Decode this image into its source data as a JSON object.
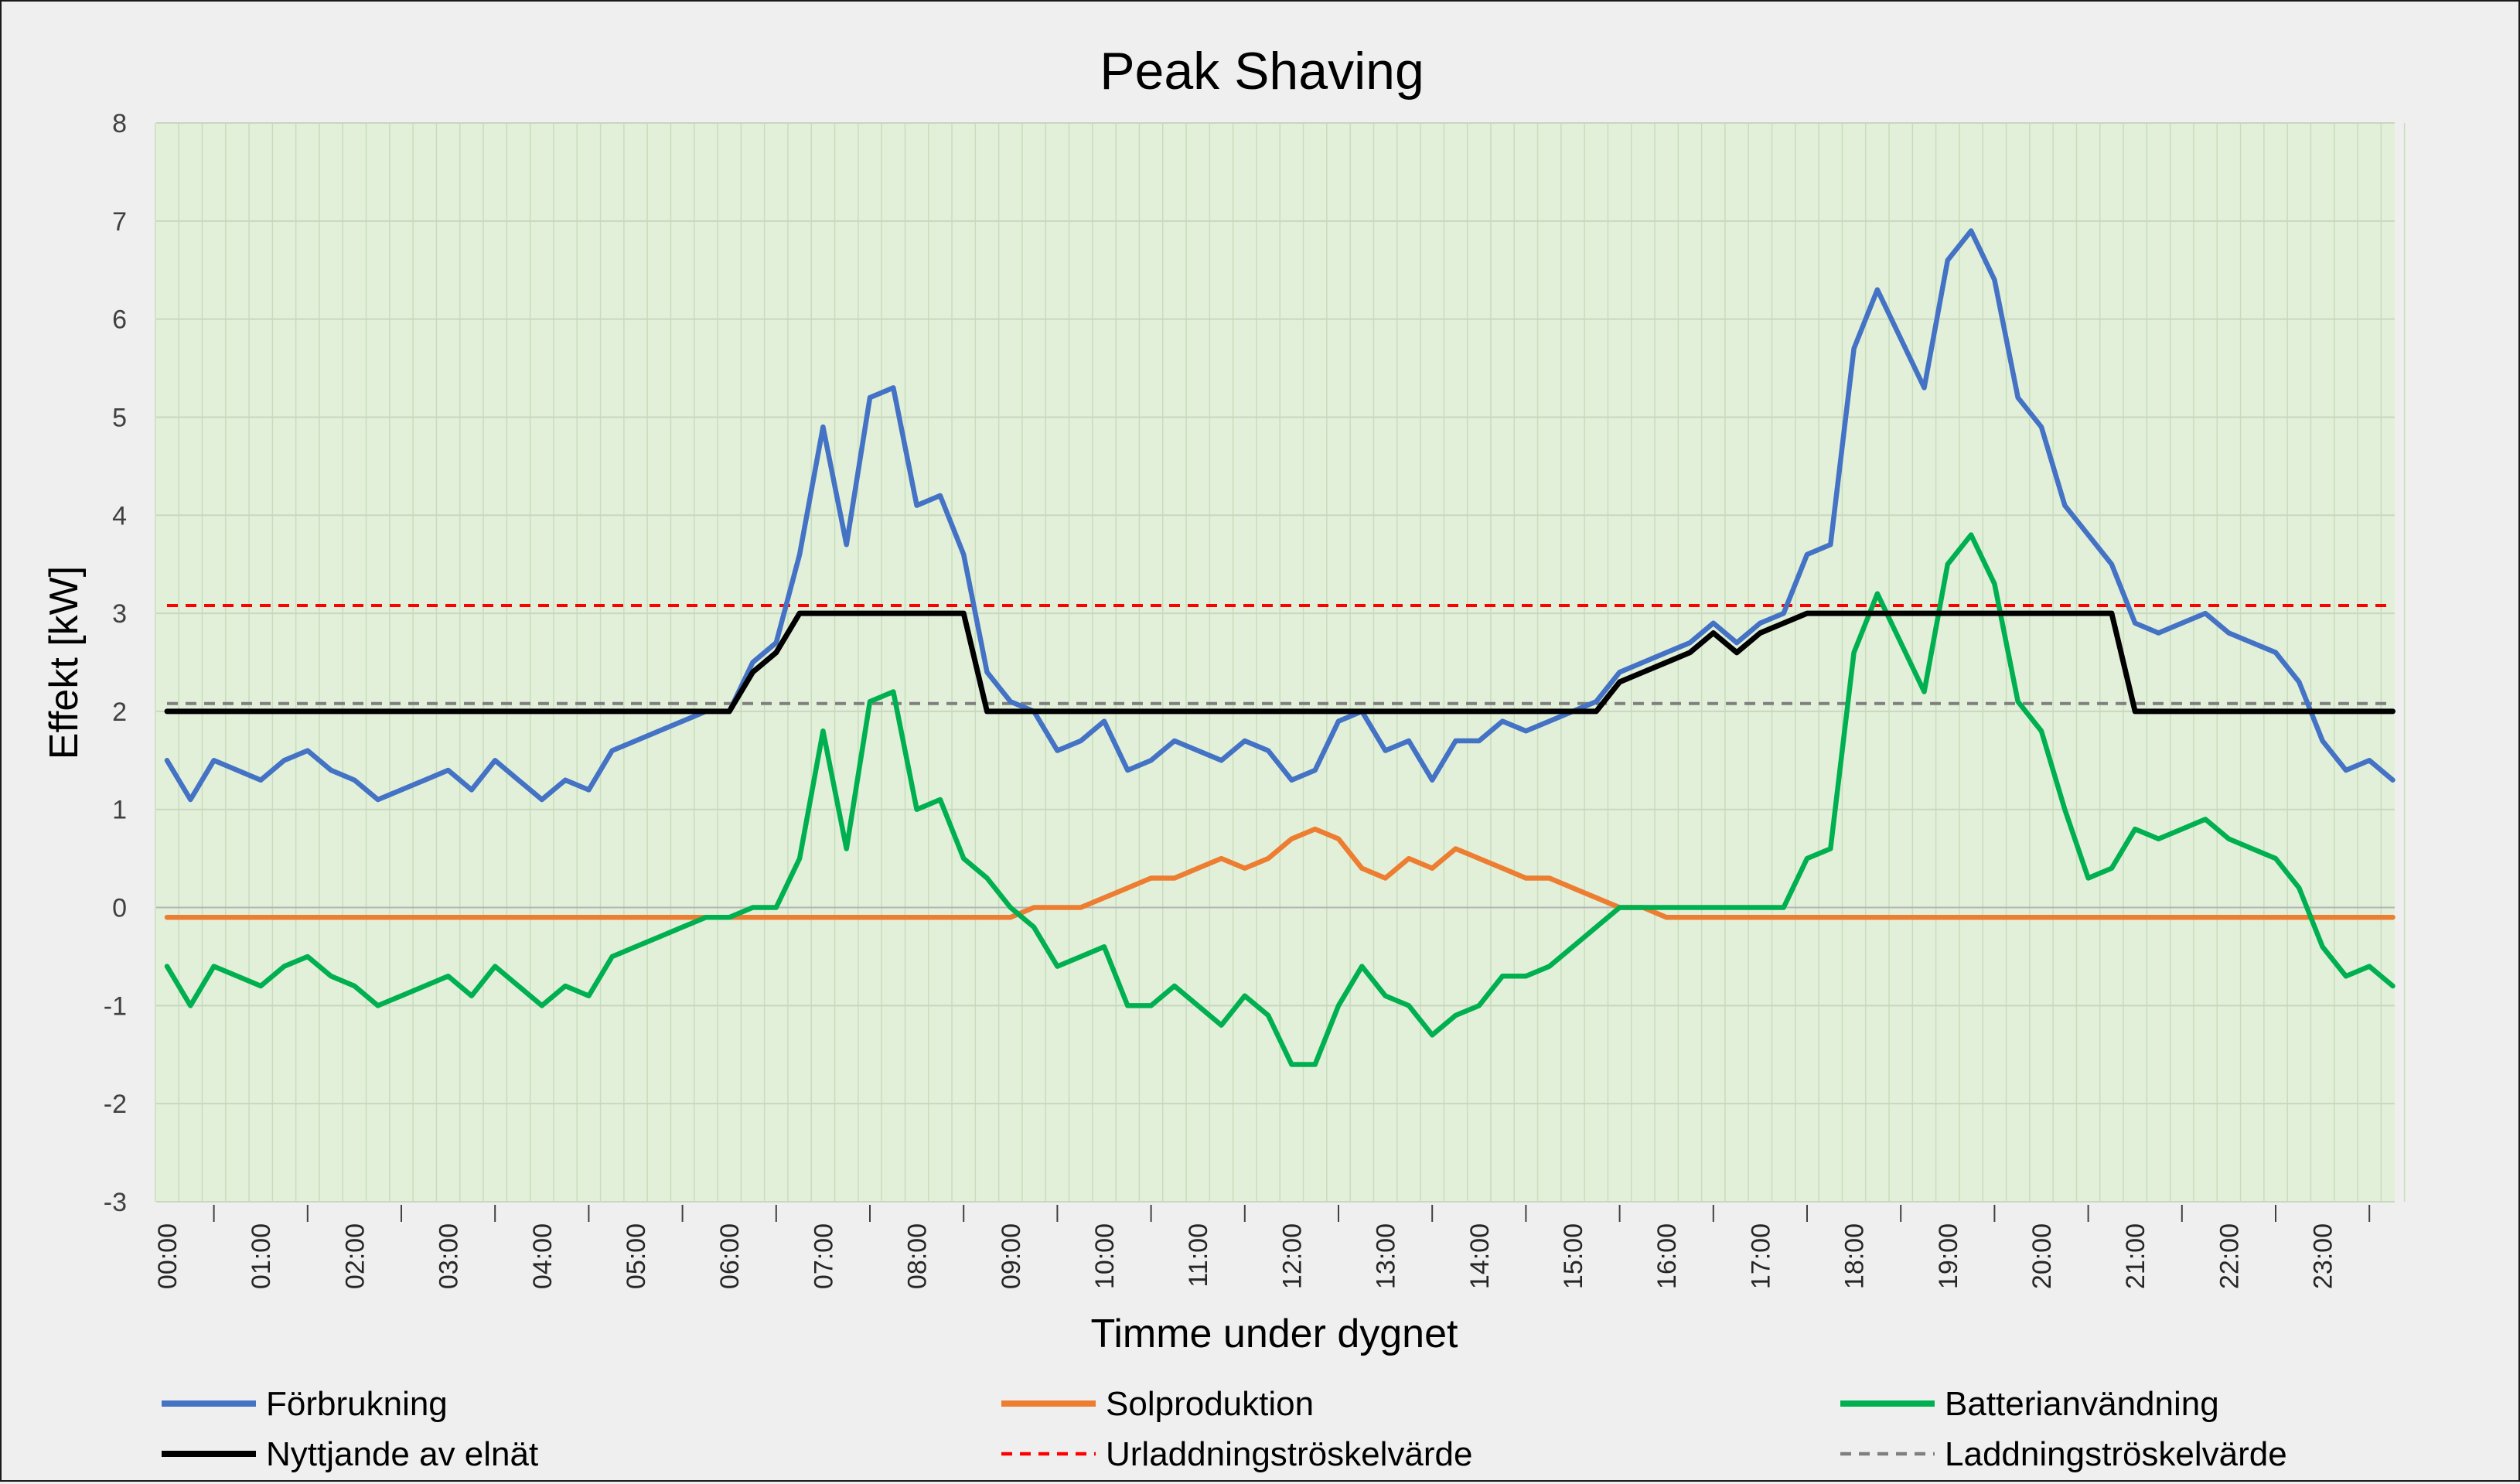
{
  "chart_data": {
    "type": "line",
    "title": "Peak Shaving",
    "xlabel": "Timme under dygnet",
    "ylabel": "Effekt [kW]",
    "ylim": [
      -3,
      8
    ],
    "yticks": [
      -3,
      -2,
      -1,
      0,
      1,
      2,
      3,
      4,
      5,
      6,
      7,
      8
    ],
    "x_tick_labels": [
      "00:00",
      "01:00",
      "02:00",
      "03:00",
      "04:00",
      "05:00",
      "06:00",
      "07:00",
      "08:00",
      "09:00",
      "10:00",
      "11:00",
      "12:00",
      "13:00",
      "14:00",
      "15:00",
      "16:00",
      "17:00",
      "18:00",
      "19:00",
      "20:00",
      "21:00",
      "22:00",
      "23:00"
    ],
    "x_step_minutes": 15,
    "grid": true,
    "legend": "bottom",
    "plot_background": "#e2f0d9",
    "series": [
      {
        "name": "Förbrukning",
        "color": "#4472c4",
        "dash": "solid",
        "values": [
          1.5,
          1.1,
          1.5,
          1.4,
          1.3,
          1.5,
          1.6,
          1.4,
          1.3,
          1.1,
          1.2,
          1.3,
          1.4,
          1.2,
          1.5,
          1.3,
          1.1,
          1.3,
          1.2,
          1.6,
          1.7,
          1.8,
          1.9,
          2.0,
          2.0,
          2.5,
          2.7,
          3.6,
          4.9,
          3.7,
          5.2,
          5.3,
          4.1,
          4.2,
          3.6,
          2.4,
          2.1,
          2.0,
          1.6,
          1.7,
          1.9,
          1.4,
          1.5,
          1.7,
          1.6,
          1.5,
          1.7,
          1.6,
          1.3,
          1.4,
          1.9,
          2.0,
          1.6,
          1.7,
          1.3,
          1.7,
          1.7,
          1.9,
          1.8,
          1.9,
          2.0,
          2.1,
          2.4,
          2.5,
          2.6,
          2.7,
          2.9,
          2.7,
          2.9,
          3.0,
          3.6,
          3.7,
          5.7,
          6.3,
          5.8,
          5.3,
          6.6,
          6.9,
          6.4,
          5.2,
          4.9,
          4.1,
          3.8,
          3.5,
          2.9,
          2.8,
          2.9,
          3.0,
          2.8,
          2.7,
          2.6,
          2.3,
          1.7,
          1.4,
          1.5,
          1.3
        ]
      },
      {
        "name": "Solproduktion",
        "color": "#ed7d31",
        "dash": "solid",
        "values": [
          -0.1,
          -0.1,
          -0.1,
          -0.1,
          -0.1,
          -0.1,
          -0.1,
          -0.1,
          -0.1,
          -0.1,
          -0.1,
          -0.1,
          -0.1,
          -0.1,
          -0.1,
          -0.1,
          -0.1,
          -0.1,
          -0.1,
          -0.1,
          -0.1,
          -0.1,
          -0.1,
          -0.1,
          -0.1,
          -0.1,
          -0.1,
          -0.1,
          -0.1,
          -0.1,
          -0.1,
          -0.1,
          -0.1,
          -0.1,
          -0.1,
          -0.1,
          -0.1,
          0.0,
          0.0,
          0.0,
          0.1,
          0.2,
          0.3,
          0.3,
          0.4,
          0.5,
          0.4,
          0.5,
          0.7,
          0.8,
          0.7,
          0.4,
          0.3,
          0.5,
          0.4,
          0.6,
          0.5,
          0.4,
          0.3,
          0.3,
          0.2,
          0.1,
          0.0,
          0.0,
          -0.1,
          -0.1,
          -0.1,
          -0.1,
          -0.1,
          -0.1,
          -0.1,
          -0.1,
          -0.1,
          -0.1,
          -0.1,
          -0.1,
          -0.1,
          -0.1,
          -0.1,
          -0.1,
          -0.1,
          -0.1,
          -0.1,
          -0.1,
          -0.1,
          -0.1,
          -0.1,
          -0.1,
          -0.1,
          -0.1,
          -0.1,
          -0.1,
          -0.1,
          -0.1,
          -0.1,
          -0.1
        ]
      },
      {
        "name": "Batterianvändning",
        "color": "#00b050",
        "dash": "solid",
        "values": [
          -0.6,
          -1.0,
          -0.6,
          -0.7,
          -0.8,
          -0.6,
          -0.5,
          -0.7,
          -0.8,
          -1.0,
          -0.9,
          -0.8,
          -0.7,
          -0.9,
          -0.6,
          -0.8,
          -1.0,
          -0.8,
          -0.9,
          -0.5,
          -0.4,
          -0.3,
          -0.2,
          -0.1,
          -0.1,
          0.0,
          0.0,
          0.5,
          1.8,
          0.6,
          2.1,
          2.2,
          1.0,
          1.1,
          0.5,
          0.3,
          0.0,
          -0.2,
          -0.6,
          -0.5,
          -0.4,
          -1.0,
          -1.0,
          -0.8,
          -1.0,
          -1.2,
          -0.9,
          -1.1,
          -1.6,
          -1.6,
          -1.0,
          -0.6,
          -0.9,
          -1.0,
          -1.3,
          -1.1,
          -1.0,
          -0.7,
          -0.7,
          -0.6,
          -0.4,
          -0.2,
          0.0,
          0.0,
          0.0,
          0.0,
          0.0,
          0.0,
          0.0,
          0.0,
          0.5,
          0.6,
          2.6,
          3.2,
          2.7,
          2.2,
          3.5,
          3.8,
          3.3,
          2.1,
          1.8,
          1.0,
          0.3,
          0.4,
          0.8,
          0.7,
          0.8,
          0.9,
          0.7,
          0.6,
          0.5,
          0.2,
          -0.4,
          -0.7,
          -0.6,
          -0.8
        ]
      },
      {
        "name": "Nyttjande av elnät",
        "color": "#000000",
        "dash": "solid",
        "values": [
          2,
          2,
          2,
          2,
          2,
          2,
          2,
          2,
          2,
          2,
          2,
          2,
          2,
          2,
          2,
          2,
          2,
          2,
          2,
          2,
          2,
          2,
          2,
          2,
          2,
          2.4,
          2.6,
          3,
          3,
          3,
          3,
          3,
          3,
          3,
          3,
          2,
          2,
          2,
          2,
          2,
          2,
          2,
          2,
          2,
          2,
          2,
          2,
          2,
          2,
          2,
          2,
          2,
          2,
          2,
          2,
          2,
          2,
          2,
          2,
          2,
          2,
          2,
          2.3,
          2.4,
          2.5,
          2.6,
          2.8,
          2.6,
          2.8,
          2.9,
          3,
          3,
          3,
          3,
          3,
          3,
          3,
          3,
          3,
          3,
          3,
          3,
          3,
          3,
          2,
          2,
          2,
          2,
          2,
          2,
          2,
          2,
          2,
          2,
          2,
          2
        ]
      },
      {
        "name": "Urladdningströskelvärde",
        "color": "#ff0000",
        "dash": "dashed",
        "values": [
          3.08,
          3.08
        ]
      },
      {
        "name": "Laddningströskelvärde",
        "color": "#7f7f7f",
        "dash": "dashed",
        "values": [
          2.08,
          2.08
        ]
      }
    ]
  }
}
